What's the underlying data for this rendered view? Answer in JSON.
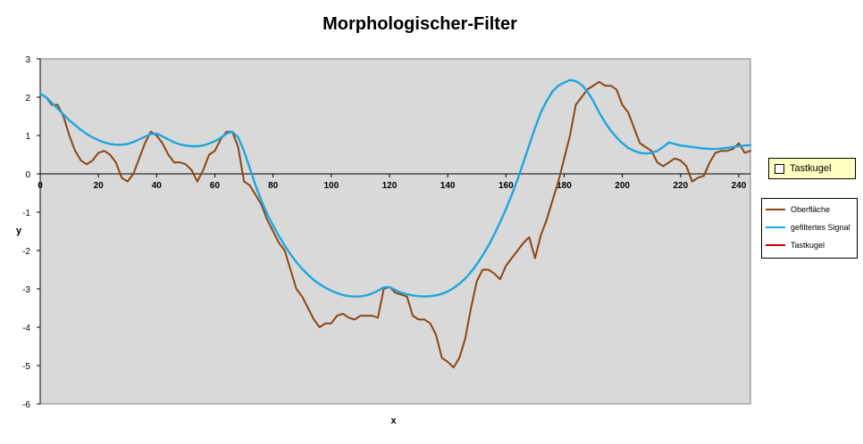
{
  "chart_data": {
    "type": "line",
    "title": "Morphologischer-Filter",
    "xlabel": "x",
    "ylabel": "y",
    "xlim": [
      0,
      244
    ],
    "ylim": [
      -6,
      3
    ],
    "x_ticks": [
      0,
      20,
      40,
      60,
      80,
      100,
      120,
      140,
      160,
      180,
      200,
      220,
      240
    ],
    "y_ticks": [
      3,
      2,
      1,
      0,
      -1,
      -2,
      -3,
      -4,
      -5,
      -6
    ],
    "plot_background": "#d9d9d9",
    "legend_position": "right",
    "series": [
      {
        "name": "Oberfläche",
        "color": "#8b4513",
        "x": [
          0,
          2,
          4,
          6,
          8,
          10,
          12,
          14,
          16,
          18,
          20,
          22,
          24,
          26,
          28,
          30,
          32,
          34,
          36,
          38,
          40,
          42,
          44,
          46,
          48,
          50,
          52,
          54,
          56,
          58,
          60,
          62,
          64,
          66,
          68,
          70,
          72,
          74,
          76,
          78,
          80,
          82,
          84,
          86,
          88,
          90,
          92,
          94,
          96,
          98,
          100,
          102,
          104,
          106,
          108,
          110,
          112,
          114,
          116,
          118,
          120,
          122,
          124,
          126,
          128,
          130,
          132,
          134,
          136,
          138,
          140,
          142,
          144,
          146,
          148,
          150,
          152,
          154,
          156,
          158,
          160,
          162,
          164,
          166,
          168,
          170,
          172,
          174,
          176,
          178,
          180,
          182,
          184,
          186,
          188,
          190,
          192,
          194,
          196,
          198,
          200,
          202,
          204,
          206,
          208,
          210,
          212,
          214,
          216,
          218,
          220,
          222,
          224,
          226,
          228,
          230,
          232,
          234,
          236,
          238,
          240,
          242,
          244
        ],
        "y": [
          2.1,
          2.0,
          1.8,
          1.8,
          1.5,
          1.0,
          0.6,
          0.35,
          0.25,
          0.35,
          0.55,
          0.6,
          0.5,
          0.3,
          -0.1,
          -0.2,
          0.0,
          0.4,
          0.8,
          1.1,
          1.0,
          0.8,
          0.5,
          0.3,
          0.3,
          0.25,
          0.1,
          -0.2,
          0.1,
          0.5,
          0.6,
          0.9,
          1.1,
          1.1,
          0.7,
          -0.2,
          -0.3,
          -0.55,
          -0.8,
          -1.2,
          -1.5,
          -1.8,
          -2.0,
          -2.5,
          -3.0,
          -3.2,
          -3.5,
          -3.8,
          -4.0,
          -3.9,
          -3.9,
          -3.7,
          -3.65,
          -3.75,
          -3.8,
          -3.7,
          -3.7,
          -3.7,
          -3.75,
          -3.0,
          -2.95,
          -3.1,
          -3.15,
          -3.2,
          -3.7,
          -3.8,
          -3.8,
          -3.9,
          -4.2,
          -4.8,
          -4.9,
          -5.05,
          -4.8,
          -4.3,
          -3.5,
          -2.8,
          -2.5,
          -2.5,
          -2.6,
          -2.75,
          -2.4,
          -2.2,
          -2.0,
          -1.8,
          -1.65,
          -2.2,
          -1.6,
          -1.2,
          -0.7,
          -0.2,
          0.4,
          1.0,
          1.8,
          2.0,
          2.2,
          2.3,
          2.4,
          2.3,
          2.3,
          2.2,
          1.8,
          1.6,
          1.2,
          0.8,
          0.7,
          0.6,
          0.3,
          0.2,
          0.3,
          0.4,
          0.35,
          0.2,
          -0.2,
          -0.1,
          -0.05,
          0.3,
          0.55,
          0.6,
          0.6,
          0.65,
          0.8,
          0.55,
          0.6
        ]
      },
      {
        "name": "gefiltertes Signal",
        "color": "#1ea6e0",
        "x": [
          0,
          2,
          4,
          6,
          8,
          10,
          12,
          14,
          16,
          18,
          20,
          22,
          24,
          26,
          28,
          30,
          32,
          34,
          36,
          38,
          40,
          42,
          44,
          46,
          48,
          50,
          52,
          54,
          56,
          58,
          60,
          62,
          64,
          66,
          68,
          70,
          72,
          74,
          76,
          78,
          80,
          82,
          84,
          86,
          88,
          90,
          92,
          94,
          96,
          98,
          100,
          102,
          104,
          106,
          108,
          110,
          112,
          114,
          116,
          118,
          120,
          122,
          124,
          126,
          128,
          130,
          132,
          134,
          136,
          138,
          140,
          142,
          144,
          146,
          148,
          150,
          152,
          154,
          156,
          158,
          160,
          162,
          164,
          166,
          168,
          170,
          172,
          174,
          176,
          178,
          180,
          182,
          184,
          186,
          188,
          190,
          192,
          194,
          196,
          198,
          200,
          202,
          204,
          206,
          208,
          210,
          212,
          214,
          216,
          218,
          220,
          222,
          224,
          226,
          228,
          230,
          232,
          234,
          236,
          238,
          240,
          242,
          244
        ],
        "y": [
          2.1,
          2.0,
          1.85,
          1.7,
          1.55,
          1.4,
          1.27,
          1.15,
          1.04,
          0.95,
          0.88,
          0.82,
          0.78,
          0.76,
          0.76,
          0.78,
          0.83,
          0.9,
          0.97,
          1.04,
          1.05,
          0.98,
          0.9,
          0.82,
          0.77,
          0.74,
          0.72,
          0.72,
          0.74,
          0.79,
          0.85,
          0.94,
          1.05,
          1.1,
          0.95,
          0.6,
          0.15,
          -0.3,
          -0.7,
          -1.05,
          -1.35,
          -1.62,
          -1.87,
          -2.1,
          -2.3,
          -2.48,
          -2.63,
          -2.77,
          -2.88,
          -2.97,
          -3.05,
          -3.11,
          -3.16,
          -3.19,
          -3.2,
          -3.2,
          -3.17,
          -3.12,
          -3.05,
          -2.96,
          -2.95,
          -3.03,
          -3.1,
          -3.14,
          -3.17,
          -3.19,
          -3.2,
          -3.19,
          -3.17,
          -3.13,
          -3.07,
          -2.98,
          -2.87,
          -2.73,
          -2.56,
          -2.36,
          -2.13,
          -1.87,
          -1.58,
          -1.26,
          -0.92,
          -0.55,
          -0.15,
          0.3,
          0.75,
          1.2,
          1.6,
          1.9,
          2.15,
          2.3,
          2.38,
          2.45,
          2.42,
          2.32,
          2.15,
          1.9,
          1.6,
          1.35,
          1.13,
          0.95,
          0.8,
          0.68,
          0.6,
          0.55,
          0.53,
          0.55,
          0.6,
          0.7,
          0.82,
          0.78,
          0.74,
          0.72,
          0.7,
          0.68,
          0.66,
          0.65,
          0.65,
          0.66,
          0.68,
          0.7,
          0.72,
          0.74,
          0.75
        ]
      },
      {
        "name": "Tastkugel",
        "color": "#cc0000",
        "x": [],
        "y": []
      }
    ]
  },
  "controls": {
    "tastkugel_checkbox_label": "Tastkugel",
    "tastkugel_checked": false
  }
}
